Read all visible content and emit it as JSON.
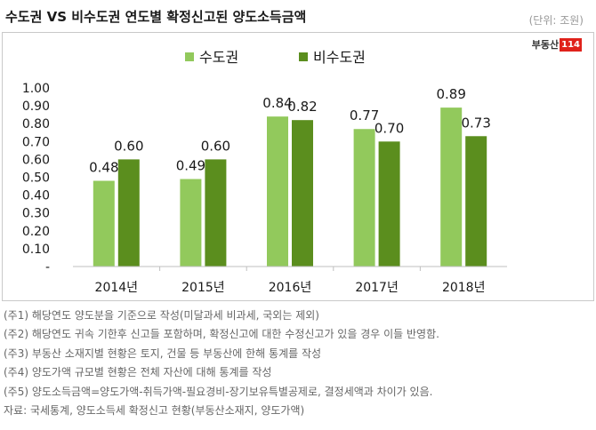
{
  "header": {
    "title": "수도권 VS 비수도권 연도별 확정신고된 양도소득금액",
    "unit": "(단위: 조원)",
    "logo_text": "부동산",
    "logo_num": "114"
  },
  "colors": {
    "series_1": "#92c95c",
    "series_2": "#5b8e1e"
  },
  "chart_data": {
    "type": "bar",
    "categories": [
      "2014년",
      "2015년",
      "2016년",
      "2017년",
      "2018년"
    ],
    "series": [
      {
        "name": "수도권",
        "values": [
          0.48,
          0.49,
          0.84,
          0.77,
          0.89
        ],
        "labels": [
          "0.48",
          "0.49",
          "0.84",
          "0.77",
          "0.89"
        ]
      },
      {
        "name": "비수도권",
        "values": [
          0.6,
          0.6,
          0.82,
          0.7,
          0.73
        ],
        "labels": [
          "0.60",
          "0.60",
          "0.82",
          "0.70",
          "0.73"
        ]
      }
    ],
    "y_ticks": [
      {
        "value": 0,
        "label": "-"
      },
      {
        "value": 0.1,
        "label": "0.10"
      },
      {
        "value": 0.2,
        "label": "0.20"
      },
      {
        "value": 0.3,
        "label": "0.30"
      },
      {
        "value": 0.4,
        "label": "0.40"
      },
      {
        "value": 0.5,
        "label": "0.50"
      },
      {
        "value": 0.6,
        "label": "0.60"
      },
      {
        "value": 0.7,
        "label": "0.70"
      },
      {
        "value": 0.8,
        "label": "0.80"
      },
      {
        "value": 0.9,
        "label": "0.90"
      },
      {
        "value": 1.0,
        "label": "1.00"
      }
    ],
    "ylim": [
      0,
      1.0
    ],
    "title": "",
    "xlabel": "",
    "ylabel": "",
    "legend_position": "top-center",
    "grid": false
  },
  "notes": [
    "(주1) 해당연도 양도분을 기준으로 작성(미달과세 비과세, 국외는 제외)",
    "(주2) 해당연도 귀속 기한후 신고들 포함하며, 확정신고에 대한 수정신고가 있을 경우 이들 반영함.",
    "(주3) 부동산 소재지별 현황은 토지, 건물 등 부동산에 한해 통계를 작성",
    "(주4) 양도가액 규모별 현황은 전체 자산에 대해 통계를 작성",
    "(주5) 양도소득금액=양도가액-취득가액-필요경비-장기보유특별공제로, 결정세액과 차이가 있음.",
    "자료: 국세통계, 양도소득세 확정신고 현황(부동산소재지, 양도가액)"
  ]
}
